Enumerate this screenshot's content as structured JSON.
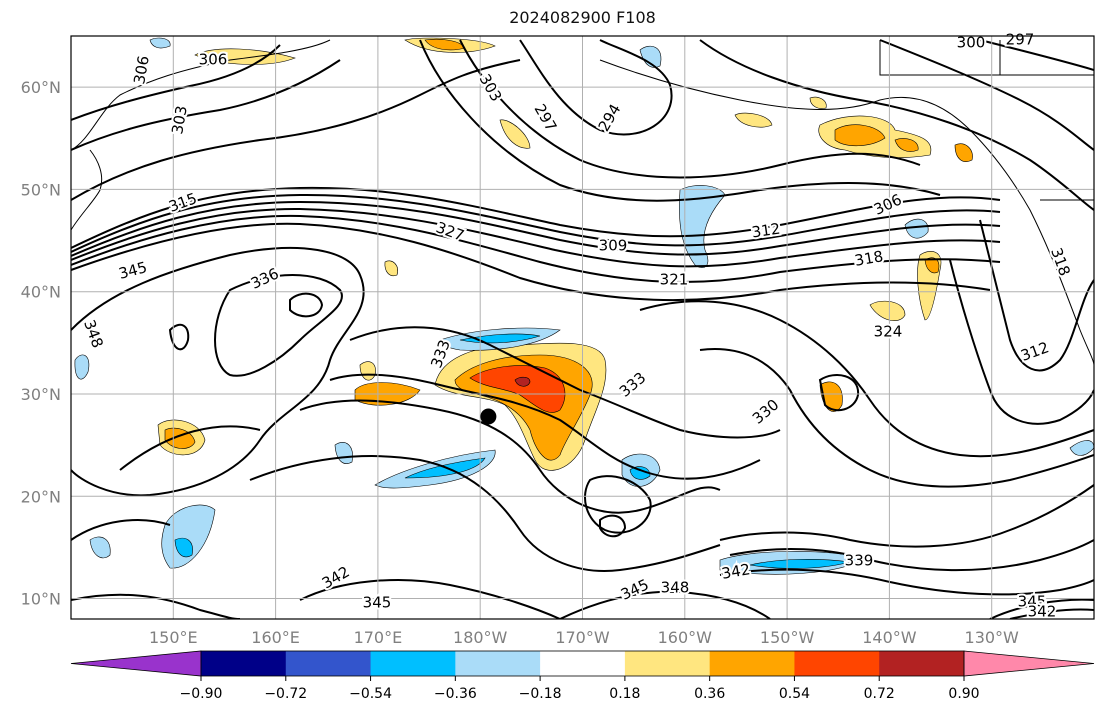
{
  "title": "2024082900 F108",
  "map": {
    "lat_labels": [
      {
        "value": 60,
        "label": "60°N"
      },
      {
        "value": 50,
        "label": "50°N"
      },
      {
        "value": 40,
        "label": "40°N"
      },
      {
        "value": 30,
        "label": "30°N"
      },
      {
        "value": 20,
        "label": "20°N"
      },
      {
        "value": 10,
        "label": "10°N"
      }
    ],
    "lon_labels": [
      {
        "value": 150,
        "label": "150°E"
      },
      {
        "value": 160,
        "label": "160°E"
      },
      {
        "value": 170,
        "label": "170°E"
      },
      {
        "value": 180,
        "label": "180°W"
      },
      {
        "value": 190,
        "label": "170°W"
      },
      {
        "value": 200,
        "label": "160°W"
      },
      {
        "value": 210,
        "label": "150°W"
      },
      {
        "value": 220,
        "label": "140°W"
      },
      {
        "value": 230,
        "label": "130°W"
      }
    ],
    "extent": {
      "lon_min": 140,
      "lon_max": 240,
      "lat_min": 8,
      "lat_max": 65
    },
    "grid": true,
    "axis_label_color": "#808080"
  },
  "contour_labels": [
    "306",
    "306",
    "303",
    "303",
    "297",
    "294",
    "300",
    "297",
    "315",
    "327",
    "309",
    "312",
    "306",
    "318",
    "321",
    "345",
    "336",
    "324",
    "348",
    "333",
    "333",
    "330",
    "312",
    "318",
    "339",
    "342",
    "342",
    "345",
    "345",
    "348",
    "345",
    "342"
  ],
  "marker": {
    "label": "storm center",
    "lon": 180.8,
    "lat": 27.8,
    "color": "#000000"
  },
  "colorbar": {
    "ticks": [
      "−0.90",
      "−0.72",
      "−0.54",
      "−0.36",
      "−0.18",
      "0.18",
      "0.36",
      "0.54",
      "0.72",
      "0.90"
    ],
    "colors": [
      "#9933cc",
      "#000088",
      "#3355cc",
      "#00bfff",
      "#aadcf8",
      "#ffffff",
      "#ffe680",
      "#ffa500",
      "#ff4500",
      "#b22222",
      "#ff88aa"
    ]
  }
}
